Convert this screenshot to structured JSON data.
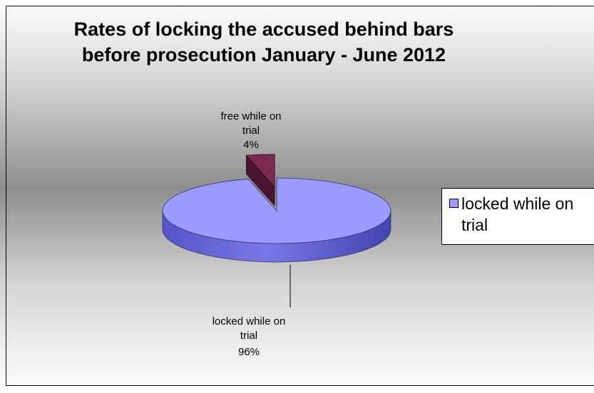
{
  "chart_data": {
    "type": "pie",
    "title": "Rates of locking the accused behind bars before prosecution January - June 2012",
    "title_lines": [
      "Rates of locking the accused behind bars",
      "before prosecution January - June 2012"
    ],
    "slices": [
      {
        "label": "free while on trial",
        "label_lines": [
          "free while on",
          "trial"
        ],
        "value": 4,
        "value_label": "4%",
        "color": "#7a2a50"
      },
      {
        "label": "locked while on trial",
        "label_lines": [
          "locked while on",
          "trial"
        ],
        "value": 96,
        "value_label": "96%",
        "color": "#9a9aff"
      }
    ],
    "legend": {
      "placement": "right",
      "entries": [
        {
          "label": "locked while on trial",
          "color": "#9a9aff"
        }
      ]
    },
    "style": "3d"
  }
}
